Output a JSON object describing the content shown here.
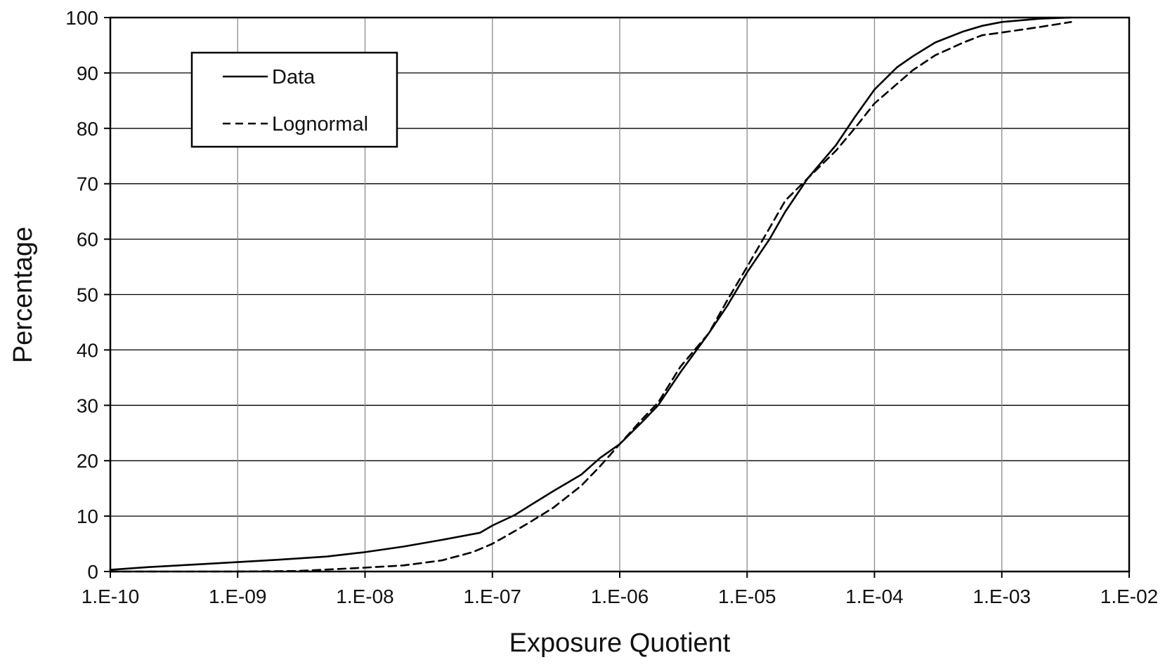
{
  "chart_data": {
    "type": "line",
    "title": "",
    "xlabel": "Exposure Quotient",
    "ylabel": "Percentage",
    "x_scale": "log",
    "xlim": [
      1e-10,
      0.01
    ],
    "ylim": [
      0,
      100
    ],
    "grid": true,
    "legend_position": "top-left",
    "x_ticks": [
      1e-10,
      1e-09,
      1e-08,
      1e-07,
      1e-06,
      1e-05,
      0.0001,
      0.001,
      0.01
    ],
    "x_tick_labels": [
      "1.E-10",
      "1.E-09",
      "1.E-08",
      "1.E-07",
      "1.E-06",
      "1.E-05",
      "1.E-04",
      "1.E-03",
      "1.E-02"
    ],
    "y_ticks": [
      0,
      10,
      20,
      30,
      40,
      50,
      60,
      70,
      80,
      90,
      100
    ],
    "y_tick_labels": [
      "0",
      "10",
      "20",
      "30",
      "40",
      "50",
      "60",
      "70",
      "80",
      "90",
      "100"
    ],
    "series": [
      {
        "name": "Data",
        "style": "solid",
        "color": "#000000",
        "x": [
          1e-10,
          2e-10,
          5e-10,
          1e-09,
          2e-09,
          5e-09,
          1e-08,
          2e-08,
          4e-08,
          8e-08,
          1e-07,
          1.5e-07,
          2e-07,
          3e-07,
          5e-07,
          7e-07,
          1e-06,
          1.5e-06,
          2e-06,
          3e-06,
          5e-06,
          7e-06,
          1e-05,
          1.5e-05,
          2e-05,
          3e-05,
          5e-05,
          7e-05,
          0.0001,
          0.00015,
          0.0002,
          0.0003,
          0.0005,
          0.0007,
          0.001,
          0.002,
          0.0035
        ],
        "y": [
          0.3,
          0.8,
          1.3,
          1.7,
          2.1,
          2.7,
          3.5,
          4.5,
          5.7,
          7,
          8.3,
          10.2,
          12,
          14.5,
          17.5,
          20.5,
          23,
          27,
          30,
          36,
          43,
          48,
          54,
          60,
          65,
          71,
          77,
          82,
          87,
          91,
          93,
          95.5,
          97.5,
          98.5,
          99.2,
          99.8,
          100
        ]
      },
      {
        "name": "Lognormal",
        "style": "dashed",
        "color": "#000000",
        "x": [
          1e-10,
          1e-09,
          3e-09,
          1e-08,
          2e-08,
          4e-08,
          7e-08,
          1e-07,
          1.5e-07,
          2e-07,
          3e-07,
          5e-07,
          7e-07,
          1e-06,
          1.5e-06,
          2e-06,
          3e-06,
          5e-06,
          7e-06,
          1e-05,
          1.5e-05,
          2e-05,
          3e-05,
          5e-05,
          7e-05,
          0.0001,
          0.00015,
          0.0002,
          0.0003,
          0.0005,
          0.0007,
          0.001,
          0.002,
          0.0035
        ],
        "y": [
          0,
          0,
          0.1,
          0.7,
          1.1,
          2,
          3.5,
          5,
          7.3,
          9,
          11.5,
          15.5,
          19,
          23,
          27.5,
          30.5,
          37,
          43,
          49,
          55,
          62,
          67,
          71,
          76,
          80,
          84.5,
          88,
          90.5,
          93.2,
          95.5,
          96.8,
          97.3,
          98.3,
          99.2
        ]
      }
    ]
  }
}
